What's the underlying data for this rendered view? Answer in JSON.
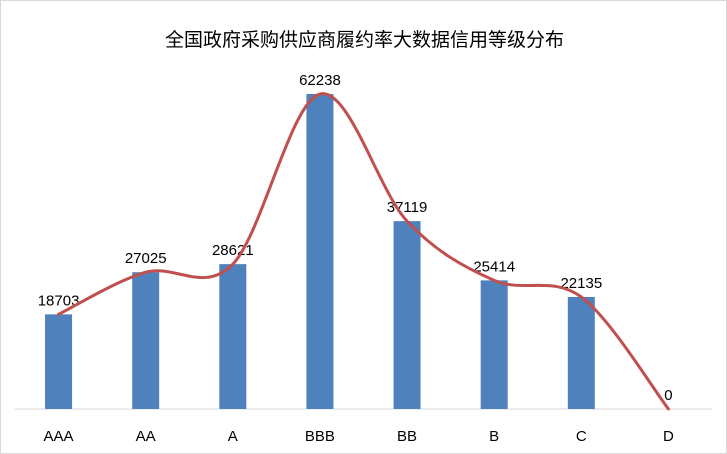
{
  "chart_data": {
    "type": "bar",
    "title": "全国政府采购供应商履约率大数据信用等级分布",
    "categories": [
      "AAA",
      "AA",
      "A",
      "BBB",
      "BB",
      "B",
      "C",
      "D"
    ],
    "values": [
      18703,
      27025,
      28621,
      62238,
      37119,
      25414,
      22135,
      0
    ],
    "ylim": [
      0,
      62238
    ],
    "grid": false,
    "legend": "none",
    "overlay": "smoothed-line",
    "colors": {
      "bar": "#4f81bd",
      "line": "#c0504d"
    }
  }
}
